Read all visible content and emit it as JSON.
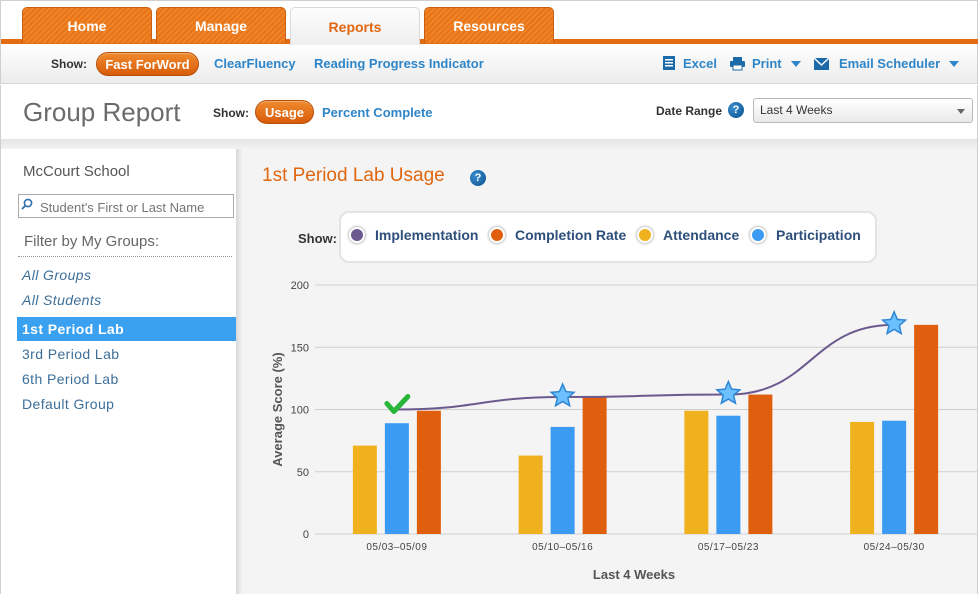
{
  "nav": {
    "tabs": [
      {
        "label": "Home",
        "active": false
      },
      {
        "label": "Manage",
        "active": false
      },
      {
        "label": "Reports",
        "active": true
      },
      {
        "label": "Resources",
        "active": false
      }
    ]
  },
  "subnav": {
    "show_label": "Show:",
    "products": [
      {
        "label": "Fast ForWord",
        "active": true
      },
      {
        "label": "ClearFluency",
        "active": false
      },
      {
        "label": "Reading Progress Indicator",
        "active": false
      }
    ],
    "tools": {
      "excel": "Excel",
      "print": "Print",
      "email": "Email Scheduler"
    }
  },
  "header": {
    "title": "Group Report",
    "show_label": "Show:",
    "views": [
      {
        "label": "Usage",
        "active": true
      },
      {
        "label": "Percent Complete",
        "active": false
      }
    ],
    "date_range_label": "Date Range",
    "help": "?",
    "date_range_value": "Last 4 Weeks"
  },
  "sidebar": {
    "school": "McCourt School",
    "search_placeholder": "Student's First or Last Name",
    "filter_label": "Filter by My Groups:",
    "groups": [
      {
        "label": "All Groups",
        "style": "italic",
        "selected": false
      },
      {
        "label": "All Students",
        "style": "italic",
        "selected": false
      },
      {
        "label": "1st Period Lab",
        "style": "normal",
        "selected": true
      },
      {
        "label": "3rd Period Lab",
        "style": "normal",
        "selected": false
      },
      {
        "label": "6th Period Lab",
        "style": "normal",
        "selected": false
      },
      {
        "label": "Default Group",
        "style": "normal",
        "selected": false
      }
    ]
  },
  "chart_data": {
    "type": "bar",
    "title": "1st Period Lab Usage",
    "help": "?",
    "legend_show_label": "Show:",
    "legend": [
      {
        "name": "Implementation",
        "color": "#6b5a8e"
      },
      {
        "name": "Completion Rate",
        "color": "#e05f0e"
      },
      {
        "name": "Attendance",
        "color": "#f0b11f"
      },
      {
        "name": "Participation",
        "color": "#3b9bf2"
      }
    ],
    "categories": [
      "05/03–05/09",
      "05/10–05/16",
      "05/17–05/23",
      "05/24–05/30"
    ],
    "series": [
      {
        "name": "Attendance",
        "color": "#f0b11f",
        "values": [
          71,
          63,
          99,
          90
        ]
      },
      {
        "name": "Participation",
        "color": "#3b9bf2",
        "values": [
          89,
          86,
          95,
          91
        ]
      },
      {
        "name": "Completion Rate",
        "color": "#e05f0e",
        "values": [
          99,
          110,
          112,
          168
        ]
      }
    ],
    "line": {
      "name": "Implementation",
      "color": "#6b5a8e",
      "values": [
        100,
        110,
        112,
        168
      ],
      "markers": [
        "check",
        "star",
        "star",
        "star"
      ]
    },
    "xlabel": "Last 4 Weeks",
    "ylabel": "Average Score (%)",
    "ylim": [
      0,
      200
    ],
    "yticks": [
      0,
      50,
      100,
      150,
      200
    ],
    "grid": true
  }
}
